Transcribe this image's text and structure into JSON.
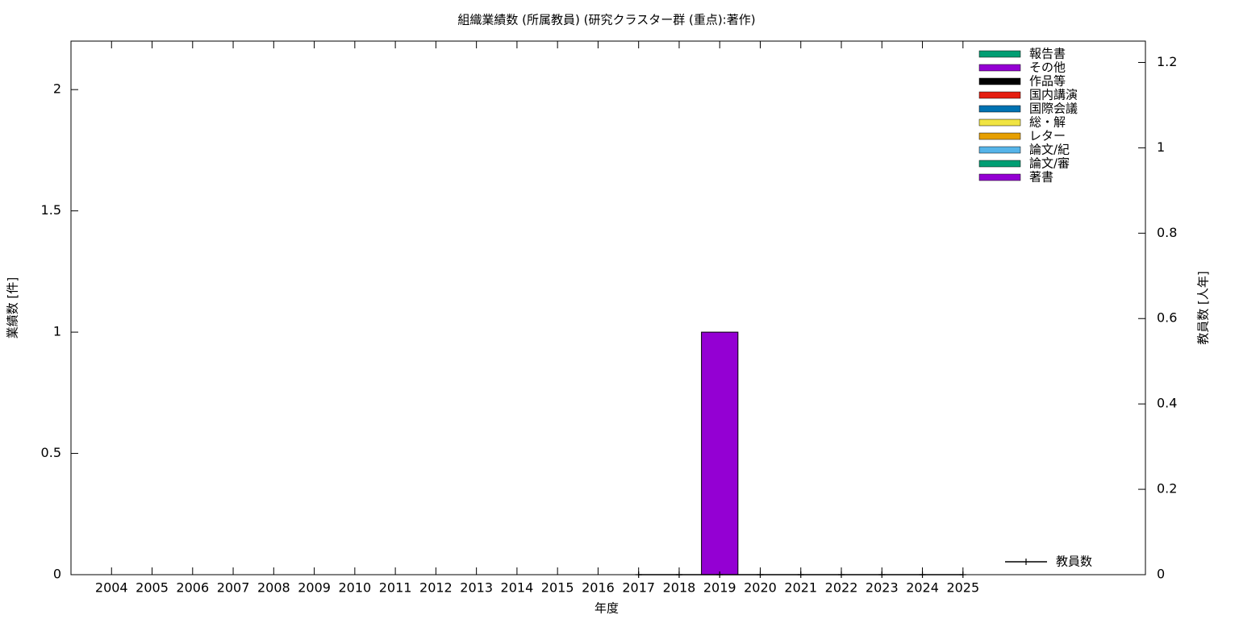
{
  "chart_data": {
    "type": "bar",
    "title": "組織業績数 (所属教員) (研究クラスター群 (重点):著作)",
    "x_label": "年度",
    "y_label": "業績数 [件]",
    "y2_label": "教員数 [人年]",
    "categories": [
      "2004",
      "2005",
      "2006",
      "2007",
      "2008",
      "2009",
      "2010",
      "2011",
      "2012",
      "2013",
      "2014",
      "2015",
      "2016",
      "2017",
      "2018",
      "2019",
      "2020",
      "2021",
      "2022",
      "2023",
      "2024",
      "2025"
    ],
    "stacked": true,
    "legend": "top-right",
    "ylim": [
      0,
      2.2
    ],
    "yticks": [
      0,
      0.5,
      1,
      1.5,
      2
    ],
    "y2lim": [
      0,
      1.25
    ],
    "y2ticks": [
      0,
      0.2,
      0.4,
      0.6,
      0.8,
      1,
      1.2
    ],
    "series": [
      {
        "name": "報告書",
        "color": "#009e73",
        "values": [
          0,
          0,
          0,
          0,
          0,
          0,
          0,
          0,
          0,
          0,
          0,
          0,
          0,
          0,
          0,
          0,
          0,
          0,
          0,
          0,
          0,
          0
        ]
      },
      {
        "name": "その他",
        "color": "#9400d3",
        "values": [
          0,
          0,
          0,
          0,
          0,
          0,
          0,
          0,
          0,
          0,
          0,
          0,
          0,
          0,
          0,
          0,
          0,
          0,
          0,
          0,
          0,
          0
        ]
      },
      {
        "name": "作品等",
        "color": "#000000",
        "values": [
          0,
          0,
          0,
          0,
          0,
          0,
          0,
          0,
          0,
          0,
          0,
          0,
          0,
          0,
          0,
          0,
          0,
          0,
          0,
          0,
          0,
          0
        ]
      },
      {
        "name": "国内講演",
        "color": "#e51e10",
        "values": [
          0,
          0,
          0,
          0,
          0,
          0,
          0,
          0,
          0,
          0,
          0,
          0,
          0,
          0,
          0,
          0,
          0,
          0,
          0,
          0,
          0,
          0
        ]
      },
      {
        "name": "国際会議",
        "color": "#0072b2",
        "values": [
          0,
          0,
          0,
          0,
          0,
          0,
          0,
          0,
          0,
          0,
          0,
          0,
          0,
          0,
          0,
          0,
          0,
          0,
          0,
          0,
          0,
          0
        ]
      },
      {
        "name": "総・解",
        "color": "#f0e442",
        "values": [
          0,
          0,
          0,
          0,
          0,
          0,
          0,
          0,
          0,
          0,
          0,
          0,
          0,
          0,
          0,
          0,
          0,
          0,
          0,
          0,
          0,
          0
        ]
      },
      {
        "name": "レター",
        "color": "#e69f00",
        "values": [
          0,
          0,
          0,
          0,
          0,
          0,
          0,
          0,
          0,
          0,
          0,
          0,
          0,
          0,
          0,
          0,
          0,
          0,
          0,
          0,
          0,
          0
        ]
      },
      {
        "name": "論文/紀",
        "color": "#56b4e9",
        "values": [
          0,
          0,
          0,
          0,
          0,
          0,
          0,
          0,
          0,
          0,
          0,
          0,
          0,
          0,
          0,
          0,
          0,
          0,
          0,
          0,
          0,
          0
        ]
      },
      {
        "name": "論文/審",
        "color": "#009e73",
        "values": [
          0,
          0,
          0,
          0,
          0,
          0,
          0,
          0,
          0,
          0,
          0,
          0,
          0,
          0,
          0,
          0,
          0,
          0,
          0,
          0,
          0,
          0
        ]
      },
      {
        "name": "著書",
        "color": "#9400d3",
        "values": [
          0,
          0,
          0,
          0,
          0,
          0,
          0,
          0,
          0,
          0,
          0,
          0,
          0,
          0,
          0,
          1,
          0,
          0,
          0,
          0,
          0,
          0
        ]
      },
      {
        "name": "教員数",
        "type": "line",
        "axis": "y2",
        "color": "#000000",
        "values": [
          null,
          null,
          null,
          null,
          null,
          null,
          null,
          null,
          null,
          null,
          null,
          null,
          null,
          0,
          0,
          0,
          0,
          0,
          0,
          0,
          0,
          0
        ]
      }
    ]
  }
}
